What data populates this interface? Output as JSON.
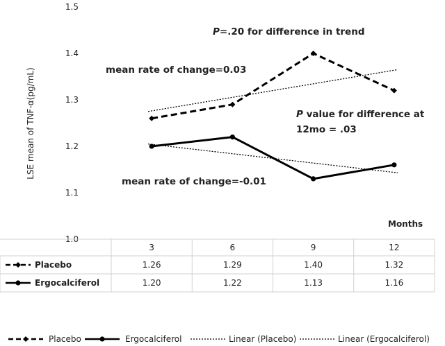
{
  "chart_data": {
    "type": "line",
    "ylabel": "LSE mean of TNF-α(pg/mL)",
    "xlabel": "Months",
    "ylim": [
      1.0,
      1.5
    ],
    "yticks": [
      "1.0",
      "1.1",
      "1.2",
      "1.3",
      "1.4",
      "1.5"
    ],
    "categories": [
      "3",
      "6",
      "9",
      "12"
    ],
    "series": [
      {
        "name": "Placebo",
        "values": [
          1.26,
          1.29,
          1.4,
          1.32
        ],
        "display": [
          "1.26",
          "1.29",
          "1.40",
          "1.32"
        ],
        "style": "dashed",
        "marker": "diamond"
      },
      {
        "name": "Ergocalciferol",
        "values": [
          1.2,
          1.22,
          1.13,
          1.16
        ],
        "display": [
          "1.20",
          "1.22",
          "1.13",
          "1.16"
        ],
        "style": "solid",
        "marker": "circle"
      }
    ],
    "trendlines": [
      {
        "name": "Linear (Placebo)",
        "start": 1.275,
        "end": 1.365
      },
      {
        "name": "Linear (Ergocalciferol)",
        "start": 1.205,
        "end": 1.143
      }
    ],
    "annotations": {
      "trend_p_italic": "P",
      "trend_p_rest": "=.20 for difference in trend",
      "placebo_rate": "mean rate of change=0.03",
      "p12_italic": "P",
      "p12_line1_rest": " value for difference at",
      "p12_line2": "12mo = .03",
      "ergo_rate": "mean rate of change=-0.01"
    },
    "grid": false,
    "legend_position": "bottom",
    "table_below": true,
    "colors": {
      "series": "#000000",
      "axis_text": "#595959",
      "table_border": "#d0d0d0"
    }
  }
}
